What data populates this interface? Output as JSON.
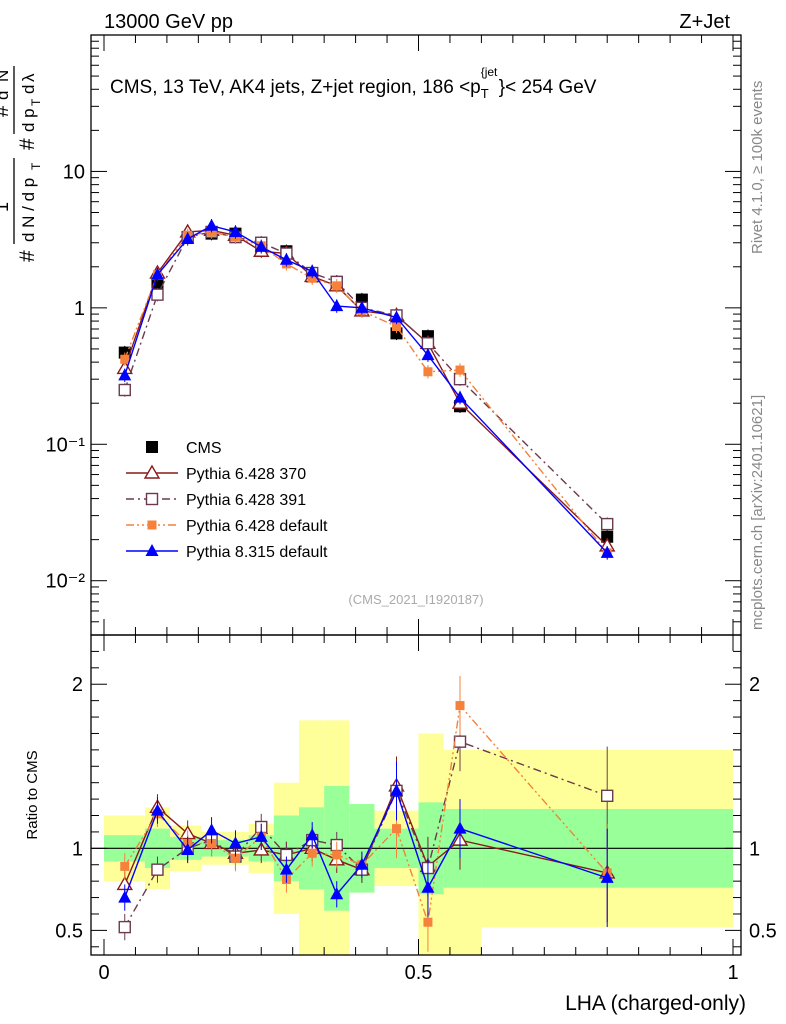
{
  "header": {
    "energy_label": "13000 GeV pp",
    "process_label": "Z+Jet"
  },
  "side_labels": {
    "rivet": "Rivet 4.1.0, ≥ 100k events",
    "mcplots": "mcplots.cern.ch [arXiv:2401.10621]"
  },
  "chart_data": [
    {
      "type": "line",
      "panel": "main",
      "title": "CMS, 13 TeV, AK4 jets, Z+jet region, 186 <p_T^{jet}< 254 GeV",
      "ylabel": "1/(dN/dp_T) d²N/(dp_T dλ)",
      "yscale": "log",
      "ylim": [
        0.004,
        100
      ],
      "xlim": [
        -0.02,
        1.0
      ],
      "y_tick_labels": [
        "10⁻²",
        "10⁻¹",
        "1",
        "10"
      ],
      "watermark": "(CMS_2021_I1920187)",
      "x": [
        0.033,
        0.085,
        0.133,
        0.171,
        0.209,
        0.25,
        0.29,
        0.331,
        0.37,
        0.41,
        0.465,
        0.515,
        0.566,
        0.8
      ],
      "series": [
        {
          "name": "CMS",
          "color": "#000000",
          "marker": "square-filled",
          "dash": "none",
          "values": [
            0.47,
            1.45,
            3.3,
            3.5,
            3.5,
            2.65,
            2.6,
            1.7,
            1.55,
            1.15,
            0.65,
            0.62,
            0.19,
            0.021
          ]
        },
        {
          "name": "Pythia 6.428 370",
          "color": "#8b1a1a",
          "marker": "triangle-open",
          "dash": "solid",
          "values": [
            0.36,
            1.8,
            3.6,
            3.7,
            3.4,
            2.6,
            2.5,
            1.7,
            1.45,
            0.95,
            0.88,
            0.55,
            0.2,
            0.018
          ]
        },
        {
          "name": "Pythia 6.428 391",
          "color": "#6b3a4e",
          "marker": "square-open",
          "dash": "dashdot",
          "values": [
            0.25,
            1.25,
            3.3,
            3.6,
            3.3,
            3.0,
            2.5,
            1.8,
            1.55,
            1.0,
            0.88,
            0.55,
            0.3,
            0.026
          ]
        },
        {
          "name": "Pythia 6.428 default",
          "color": "#f5813a",
          "marker": "square-filled-small",
          "dash": "dashdotdot",
          "values": [
            0.42,
            1.75,
            3.4,
            3.6,
            3.3,
            2.85,
            2.1,
            1.65,
            1.45,
            0.95,
            0.73,
            0.34,
            0.35,
            0.016
          ]
        },
        {
          "name": "Pythia 8.315 default",
          "color": "#0000ff",
          "marker": "triangle-filled",
          "dash": "solid",
          "values": [
            0.32,
            1.75,
            3.2,
            4.0,
            3.6,
            2.8,
            2.25,
            1.85,
            1.03,
            1.0,
            0.85,
            0.45,
            0.22,
            0.016
          ]
        }
      ]
    },
    {
      "type": "line",
      "panel": "ratio",
      "ylabel": "Ratio to CMS",
      "ylim": [
        0.35,
        2.3
      ],
      "xlim": [
        -0.02,
        1.0
      ],
      "xlabel": "LHA (charged-only)",
      "x_ticks": [
        0,
        0.5,
        1
      ],
      "x_tick_labels": [
        "0",
        "0.5",
        "1"
      ],
      "y_ticks": [
        0.5,
        1,
        2
      ],
      "y_tick_labels": [
        "0.5",
        "1",
        "2"
      ],
      "reference": 1.0,
      "bands": {
        "bin_edges": [
          0.0,
          0.065,
          0.105,
          0.155,
          0.19,
          0.23,
          0.27,
          0.31,
          0.35,
          0.39,
          0.43,
          0.5,
          0.54,
          0.6,
          1.0
        ],
        "stat_lo": [
          0.92,
          0.88,
          0.93,
          0.95,
          0.95,
          0.92,
          0.8,
          0.75,
          0.62,
          0.73,
          0.88,
          0.72,
          0.76,
          0.76
        ],
        "stat_hi": [
          1.08,
          1.12,
          1.07,
          1.05,
          1.05,
          1.08,
          1.2,
          1.25,
          1.38,
          1.27,
          1.12,
          1.28,
          1.24,
          1.24
        ],
        "total_lo": [
          0.8,
          0.75,
          0.86,
          0.9,
          0.9,
          0.85,
          0.6,
          0.2,
          0.2,
          0.74,
          0.77,
          0.2,
          0.2,
          0.52
        ],
        "total_hi": [
          1.2,
          1.25,
          1.14,
          1.1,
          1.1,
          1.15,
          1.4,
          1.78,
          1.78,
          1.26,
          1.23,
          1.7,
          1.6,
          1.6
        ],
        "stat_color": "#99ff99",
        "total_color": "#ffff99"
      },
      "x": [
        0.033,
        0.085,
        0.133,
        0.171,
        0.209,
        0.25,
        0.29,
        0.331,
        0.37,
        0.41,
        0.465,
        0.515,
        0.566,
        0.8
      ],
      "series": [
        {
          "name": "Pythia 6.428 370",
          "color": "#8b1a1a",
          "marker": "triangle-open",
          "dash": "solid",
          "values": [
            0.78,
            1.25,
            1.09,
            1.03,
            0.97,
            0.99,
            0.96,
            1.0,
            0.93,
            0.87,
            1.38,
            0.89,
            1.05,
            0.85
          ]
        },
        {
          "name": "Pythia 6.428 391",
          "color": "#6b3a4e",
          "marker": "square-open",
          "dash": "dashdot",
          "values": [
            0.52,
            0.87,
            1.0,
            1.05,
            0.95,
            1.13,
            0.96,
            1.05,
            1.02,
            0.87,
            1.35,
            0.88,
            1.65,
            1.32
          ]
        },
        {
          "name": "Pythia 6.428 default",
          "color": "#f5813a",
          "marker": "square-filled-small",
          "dash": "dashdotdot",
          "values": [
            0.89,
            1.21,
            1.03,
            1.03,
            0.94,
            1.07,
            0.81,
            0.97,
            0.96,
            0.9,
            1.12,
            0.55,
            1.87,
            0.85
          ]
        },
        {
          "name": "Pythia 8.315 default",
          "color": "#0000ff",
          "marker": "triangle-filled",
          "dash": "solid",
          "values": [
            0.7,
            1.23,
            0.99,
            1.11,
            1.03,
            1.07,
            0.87,
            1.08,
            0.72,
            0.9,
            1.35,
            0.76,
            1.12,
            0.82
          ]
        }
      ]
    }
  ]
}
